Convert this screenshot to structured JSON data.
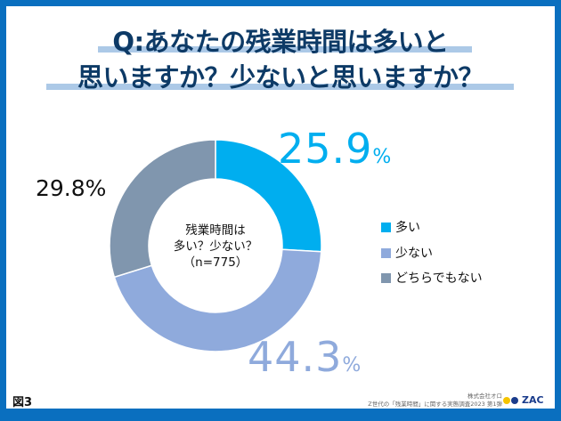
{
  "title_lines": [
    "Q:あなたの残業時間は多いと",
    "思いますか？少ないと思いますか？"
  ],
  "chart_data": {
    "type": "pie",
    "donut": true,
    "center_label": [
      "残業時間は",
      "多い？少ない？",
      "（n=775）"
    ],
    "categories": [
      "多い",
      "少ない",
      "どちらでもない"
    ],
    "values": [
      25.9,
      44.3,
      29.8
    ],
    "value_labels": [
      "25.9",
      "44.3",
      "29.8%"
    ],
    "unit": "%",
    "colors": [
      "#00aeef",
      "#8faadc",
      "#8096ae"
    ],
    "legend_position": "right"
  },
  "figure_label": "図3",
  "credit_lines": [
    "株式会社オロ",
    "Z世代の「残業時間」に関する実態調査2023 第1弾"
  ],
  "logo_text": "ZAC"
}
